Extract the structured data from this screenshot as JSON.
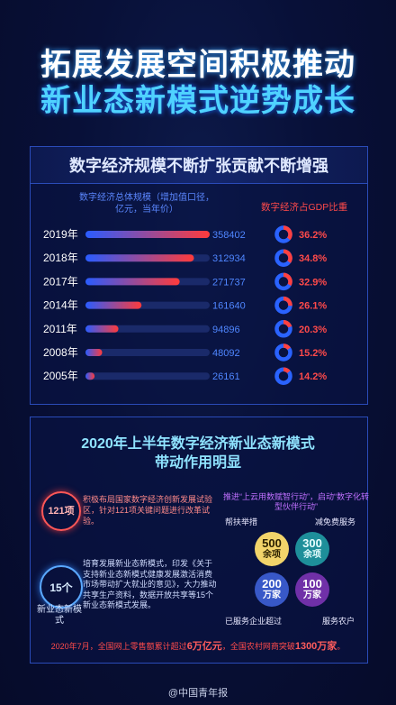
{
  "title": {
    "line1": "拓展发展空间积极推动",
    "line2": "新业态新模式逆势成长"
  },
  "section1": {
    "heading": "数字经济规模不断扩张贡献不断增强",
    "legend_left": "数字经济总体规模（增加值口径，亿元，当年价）",
    "legend_right": "数字经济占GDP比重"
  },
  "chart_data": {
    "type": "bar",
    "categories": [
      "2019年",
      "2018年",
      "2017年",
      "2014年",
      "2011年",
      "2008年",
      "2005年"
    ],
    "series": [
      {
        "name": "数字经济总体规模（增加值口径，亿元，当年价）",
        "values": [
          358402,
          312934,
          271737,
          161640,
          94896,
          48092,
          26161
        ]
      },
      {
        "name": "数字经济占GDP比重",
        "values": [
          36.2,
          34.8,
          32.9,
          26.1,
          20.3,
          15.2,
          14.2
        ]
      }
    ],
    "value_labels": [
      "358402",
      "312934",
      "271737",
      "161640",
      "94896",
      "48092",
      "26161"
    ],
    "pct_labels": [
      "36.2%",
      "34.8%",
      "32.9%",
      "26.1%",
      "20.3%",
      "15.2%",
      "14.2%"
    ],
    "xlim": [
      0,
      358402
    ]
  },
  "section2": {
    "heading_line1": "2020年上半年数字经济新业态新模式",
    "heading_line2": "带动作用明显",
    "badge121": "121项",
    "badge15": "15个",
    "badge15_caption": "新业态新模式",
    "text_red": "积极布局国家数字经济创新发展试验区，针对121项关键问题进行改革试验。",
    "text_blue": "培育发展新业态新模式，印发《关于支持新业态新模式健康发展激活消费市场带动扩大就业的意见》，大力推动共享生产资料，数据开放共享等15个新业态新模式发展。",
    "right_text": "推进“上云用数赋智行动”，启动“数字化转型伙伴行动”",
    "circles": [
      {
        "num": "500",
        "unit": "余项"
      },
      {
        "num": "300",
        "unit": "余项"
      },
      {
        "num": "200",
        "unit": "万家"
      },
      {
        "num": "100",
        "unit": "万家"
      }
    ],
    "labels": {
      "help": "帮扶举措",
      "reduce": "减免费服务",
      "enterprises": "已服务企业超过",
      "farmers": "服务农户"
    },
    "bottom": {
      "pre": "2020年7月，全国网上零售额累计超过",
      "v1": "6万亿元",
      "mid": "，全国农村网商突破",
      "v2": "1300万家",
      "post": "。"
    }
  },
  "source": "@中国青年报",
  "colors": {
    "bar_gradient_start": "#2a5cff",
    "bar_gradient_end": "#ff3b3b",
    "ring": "#2a63ff",
    "ring_fill": "#ff4040"
  }
}
